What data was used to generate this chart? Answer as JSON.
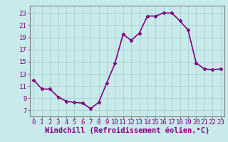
{
  "x": [
    0,
    1,
    2,
    3,
    4,
    5,
    6,
    7,
    8,
    9,
    10,
    11,
    12,
    13,
    14,
    15,
    16,
    17,
    18,
    19,
    20,
    21,
    22,
    23
  ],
  "y": [
    12.0,
    10.5,
    10.5,
    9.2,
    8.5,
    8.3,
    8.2,
    7.3,
    8.3,
    11.5,
    14.7,
    19.5,
    18.5,
    19.7,
    22.5,
    22.5,
    23.0,
    23.0,
    21.7,
    20.2,
    14.8,
    13.8,
    13.7,
    13.8
  ],
  "line_color": "#800080",
  "marker": "D",
  "marker_size": 2.5,
  "bg_color": "#c8eaea",
  "grid_color": "#aad4d4",
  "xlabel": "Windchill (Refroidissement éolien,°C)",
  "xlabel_fontsize": 7.5,
  "xtick_labels": [
    "0",
    "1",
    "2",
    "3",
    "4",
    "5",
    "6",
    "7",
    "8",
    "9",
    "10",
    "11",
    "12",
    "13",
    "14",
    "15",
    "16",
    "17",
    "18",
    "19",
    "20",
    "21",
    "22",
    "23"
  ],
  "ytick_labels": [
    "7",
    "9",
    "11",
    "13",
    "15",
    "17",
    "19",
    "21",
    "23"
  ],
  "ytick_values": [
    7,
    9,
    11,
    13,
    15,
    17,
    19,
    21,
    23
  ],
  "ylim": [
    6.0,
    24.2
  ],
  "xlim": [
    -0.5,
    23.5
  ],
  "tick_color": "#800080",
  "tick_fontsize": 6.5,
  "linewidth": 1.2
}
